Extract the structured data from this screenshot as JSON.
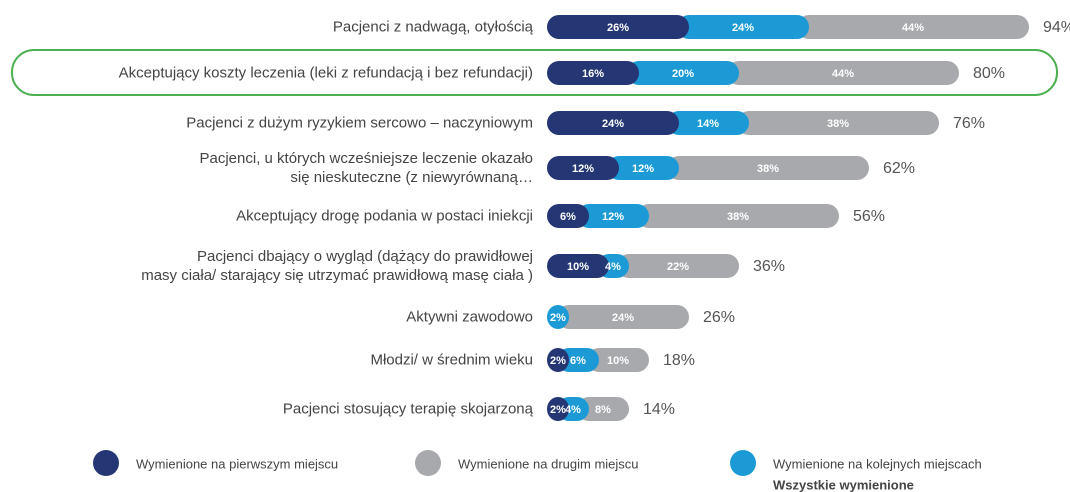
{
  "chart_data": {
    "type": "stacked-bar-horizontal",
    "categories": [
      "Pacjenci z nadwagą, otyłością",
      "Akceptujący koszty leczenia (leki z refundacją i bez refundacji)",
      "Pacjenci z dużym ryzykiem sercowo – naczyniowym",
      "Pacjenci, u których wcześniejsze leczenie okazało\nsię nieskuteczne (z niewyrównaną…",
      "Akceptujący drogę podania w postaci iniekcji",
      "Pacjenci dbający o wygląd (dążący do prawidłowej\nmasy ciała/ starający się utrzymać prawidłową masę ciała )",
      "Aktywni zawodowo",
      "Młodzi/ w średnim wieku",
      "Pacjenci stosujący terapię skojarzoną"
    ],
    "series": [
      {
        "name": "Wymienione na pierwszym miejscu",
        "color": "#243673",
        "values": [
          26,
          16,
          24,
          12,
          6,
          10,
          null,
          2,
          2
        ],
        "value_labels": [
          "26%",
          "16%",
          "24%",
          "12%",
          "6%",
          "10%",
          null,
          "2%",
          "2%"
        ]
      },
      {
        "name": "Wymienione na drugim miejscu",
        "color": "#a7a9ac",
        "values": [
          44,
          44,
          38,
          38,
          38,
          22,
          24,
          10,
          8
        ],
        "value_labels": [
          "44%",
          "44%",
          "38%",
          "38%",
          "38%",
          "22%",
          "24%",
          "10%",
          "8%"
        ]
      },
      {
        "name": "Wymienione na kolejnych miejscach",
        "color": "#1b9ad6",
        "values": [
          24,
          20,
          14,
          12,
          12,
          4,
          2,
          6,
          4
        ],
        "value_labels": [
          "24%",
          "20%",
          "14%",
          "12%",
          "12%",
          "4%",
          "2%",
          "6%",
          "4%"
        ]
      }
    ],
    "totals": {
      "name": "Wszystkie wymienione",
      "values": [
        94,
        80,
        76,
        62,
        56,
        36,
        26,
        18,
        14
      ],
      "value_labels": [
        "94%",
        "80%",
        "76%",
        "62%",
        "56%",
        "36%",
        "26%",
        "18%",
        "14%"
      ]
    }
  }
}
